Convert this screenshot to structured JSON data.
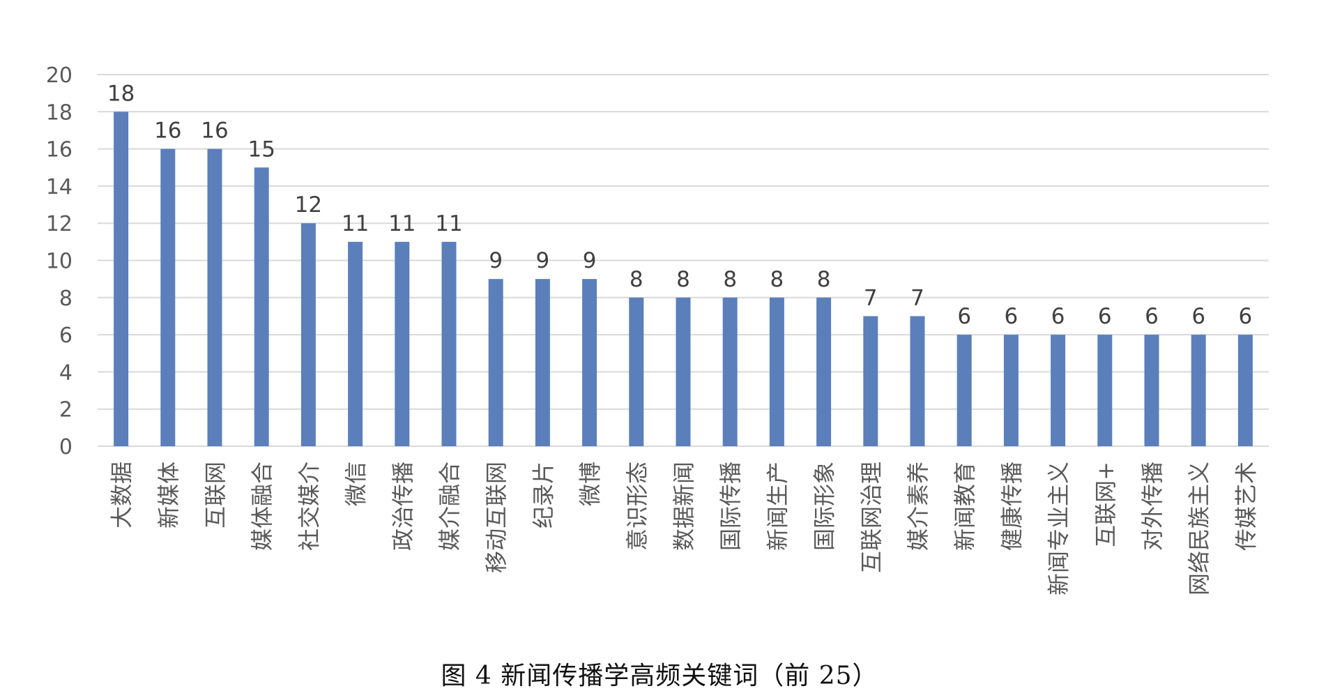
{
  "figure": {
    "caption": "图 4  新闻传播学高频关键词（前 25）"
  },
  "chart_data": {
    "type": "bar",
    "title": "",
    "xlabel": "",
    "ylabel": "",
    "ylim": [
      0,
      20
    ],
    "ytick_step": 2,
    "yticks": [
      "0",
      "2",
      "4",
      "6",
      "8",
      "10",
      "12",
      "14",
      "16",
      "18",
      "20"
    ],
    "grid": true,
    "legend": "none",
    "bar_color": "#5b7fbb",
    "grid_color": "#d9d9d9",
    "categories": [
      "大数据",
      "新媒体",
      "互联网",
      "媒体融合",
      "社交媒介",
      "微信",
      "政治传播",
      "媒介融合",
      "移动互联网",
      "纪录片",
      "微博",
      "意识形态",
      "数据新闻",
      "国际传播",
      "新闻生产",
      "国际形象",
      "互联网治理",
      "媒介素养",
      "新闻教育",
      "健康传播",
      "新闻专业主义",
      "互联网+",
      "对外传播",
      "网络民族主义",
      "传媒艺术"
    ],
    "values": [
      18,
      16,
      16,
      15,
      12,
      11,
      11,
      11,
      9,
      9,
      9,
      8,
      8,
      8,
      8,
      8,
      7,
      7,
      6,
      6,
      6,
      6,
      6,
      6,
      6
    ],
    "data_labels": [
      "18",
      "16",
      "16",
      "15",
      "12",
      "11",
      "11",
      "11",
      "9",
      "9",
      "9",
      "8",
      "8",
      "8",
      "8",
      "8",
      "7",
      "7",
      "6",
      "6",
      "6",
      "6",
      "6",
      "6",
      "6"
    ]
  }
}
